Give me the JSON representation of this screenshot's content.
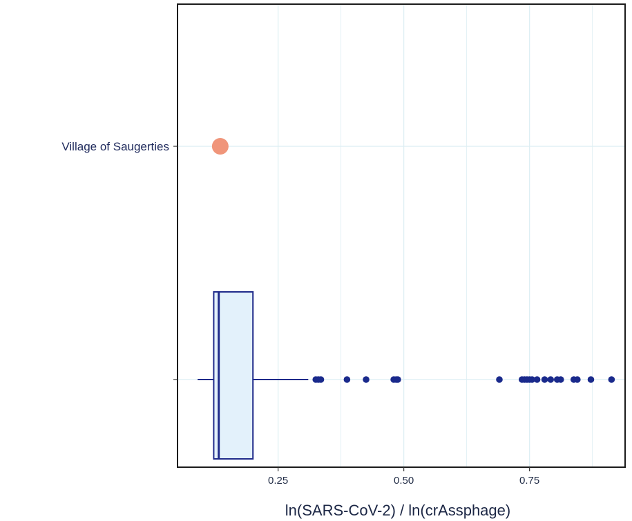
{
  "chart_data": {
    "type": "boxplot",
    "xlabel": "ln(SARS-CoV-2) / ln(crAssphage)",
    "xlim": [
      0.05,
      0.94
    ],
    "xticks": [
      0.25,
      0.5,
      0.75
    ],
    "tick_labels": [
      "0.25",
      "0.50",
      "0.75"
    ],
    "categories": [
      "Village of Saugerties",
      ""
    ],
    "highlight": {
      "category": "Village of Saugerties",
      "value": 0.135,
      "color": "#f0957a"
    },
    "box": {
      "whisker_low": 0.09,
      "q1": 0.122,
      "median": 0.132,
      "q3": 0.2,
      "whisker_high": 0.31,
      "fill": "#e3f1fb",
      "stroke": "#1f2a8a"
    },
    "outliers": [
      0.325,
      0.33,
      0.335,
      0.387,
      0.425,
      0.48,
      0.485,
      0.488,
      0.69,
      0.735,
      0.74,
      0.745,
      0.75,
      0.755,
      0.765,
      0.78,
      0.792,
      0.805,
      0.812,
      0.838,
      0.845,
      0.872,
      0.913
    ],
    "outlier_color": "#1a2a8c",
    "grid": true,
    "grid_color": "#dceef3"
  }
}
